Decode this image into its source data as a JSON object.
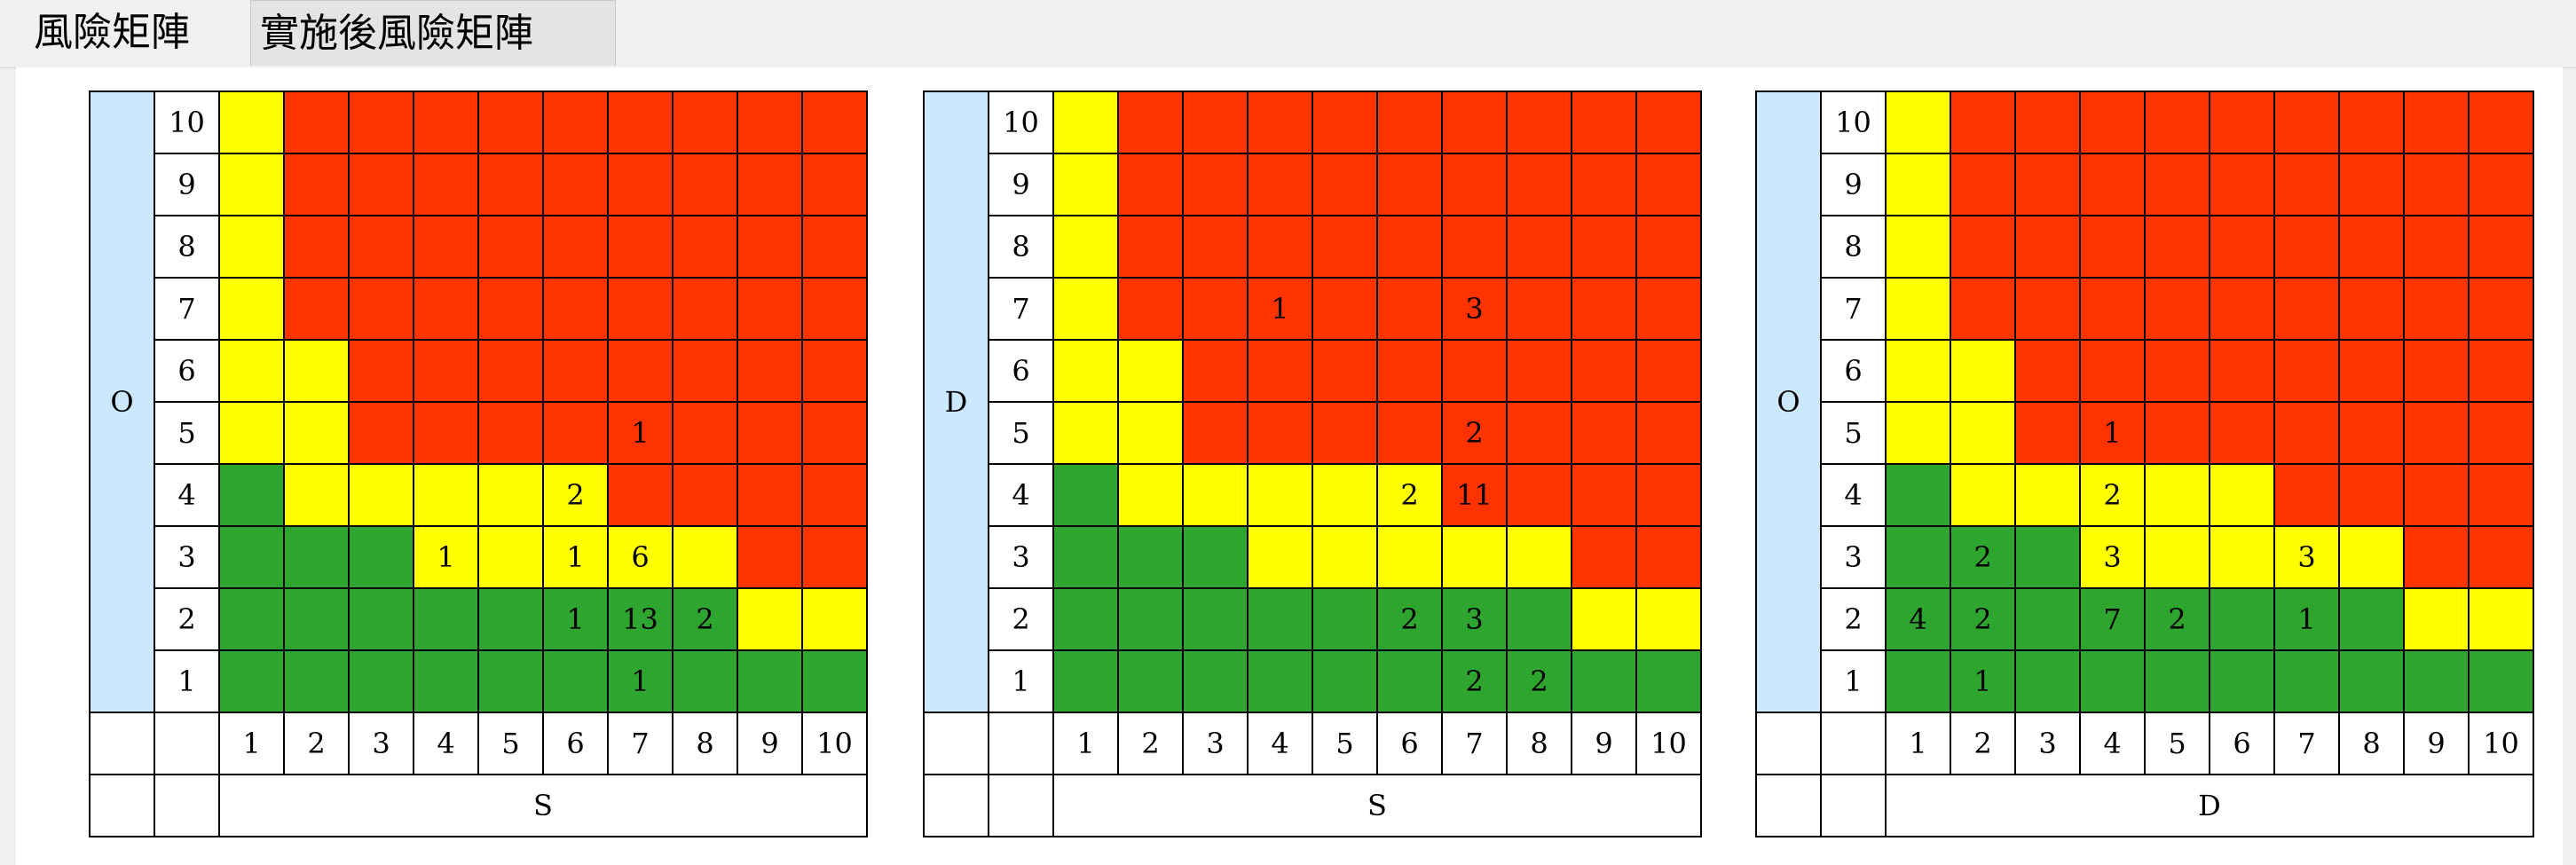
{
  "tabs": [
    {
      "label": "風險矩陣",
      "active": true
    },
    {
      "label": "實施後風險矩陣",
      "active": false
    }
  ],
  "colors": {
    "green": "#2ea52e",
    "yellow": "#ffff00",
    "red": "#ff3300",
    "axis_bg": "#cce8ff"
  },
  "matrices": [
    {
      "y_axis_label": "O",
      "x_axis_label": "S",
      "y_ticks": [
        "10",
        "9",
        "8",
        "7",
        "6",
        "5",
        "4",
        "3",
        "2",
        "1"
      ],
      "x_ticks": [
        "1",
        "2",
        "3",
        "4",
        "5",
        "6",
        "7",
        "8",
        "9",
        "10"
      ],
      "color_rows": [
        "YRRRRRRRRR",
        "YRRRRRRRRR",
        "YRRRRRRRRR",
        "YRRRRRRRRR",
        "YYRRRRRRRR",
        "YYRRRRRRRR",
        "GYYYYYRRRR",
        "GGGYYYYYRR",
        "GGGGGGGGYY",
        "GGGGGGGGGG"
      ],
      "counts": [
        [
          "",
          "",
          "",
          "",
          "",
          "",
          "",
          "",
          "",
          ""
        ],
        [
          "",
          "",
          "",
          "",
          "",
          "",
          "",
          "",
          "",
          ""
        ],
        [
          "",
          "",
          "",
          "",
          "",
          "",
          "",
          "",
          "",
          ""
        ],
        [
          "",
          "",
          "",
          "",
          "",
          "",
          "",
          "",
          "",
          ""
        ],
        [
          "",
          "",
          "",
          "",
          "",
          "",
          "",
          "",
          "",
          ""
        ],
        [
          "",
          "",
          "",
          "",
          "",
          "",
          "1",
          "",
          "",
          ""
        ],
        [
          "",
          "",
          "",
          "",
          "",
          "2",
          "",
          "",
          "",
          ""
        ],
        [
          "",
          "",
          "",
          "1",
          "",
          "1",
          "6",
          "",
          "",
          ""
        ],
        [
          "",
          "",
          "",
          "",
          "",
          "1",
          "13",
          "2",
          "",
          ""
        ],
        [
          "",
          "",
          "",
          "",
          "",
          "",
          "1",
          "",
          "",
          ""
        ]
      ]
    },
    {
      "y_axis_label": "D",
      "x_axis_label": "S",
      "y_ticks": [
        "10",
        "9",
        "8",
        "7",
        "6",
        "5",
        "4",
        "3",
        "2",
        "1"
      ],
      "x_ticks": [
        "1",
        "2",
        "3",
        "4",
        "5",
        "6",
        "7",
        "8",
        "9",
        "10"
      ],
      "color_rows": [
        "YRRRRRRRRR",
        "YRRRRRRRRR",
        "YRRRRRRRRR",
        "YRRRRRRRRR",
        "YYRRRRRRRR",
        "YYRRRRRRRR",
        "GYYYYYRRRR",
        "GGGYYYYYRR",
        "GGGGGGGGYY",
        "GGGGGGGGGG"
      ],
      "counts": [
        [
          "",
          "",
          "",
          "",
          "",
          "",
          "",
          "",
          "",
          ""
        ],
        [
          "",
          "",
          "",
          "",
          "",
          "",
          "",
          "",
          "",
          ""
        ],
        [
          "",
          "",
          "",
          "",
          "",
          "",
          "",
          "",
          "",
          ""
        ],
        [
          "",
          "",
          "",
          "1",
          "",
          "",
          "3",
          "",
          "",
          ""
        ],
        [
          "",
          "",
          "",
          "",
          "",
          "",
          "",
          "",
          "",
          ""
        ],
        [
          "",
          "",
          "",
          "",
          "",
          "",
          "2",
          "",
          "",
          ""
        ],
        [
          "",
          "",
          "",
          "",
          "",
          "2",
          "11",
          "",
          "",
          ""
        ],
        [
          "",
          "",
          "",
          "",
          "",
          "",
          "",
          "",
          "",
          ""
        ],
        [
          "",
          "",
          "",
          "",
          "",
          "2",
          "3",
          "",
          "",
          ""
        ],
        [
          "",
          "",
          "",
          "",
          "",
          "",
          "2",
          "2",
          "",
          ""
        ]
      ]
    },
    {
      "y_axis_label": "O",
      "x_axis_label": "D",
      "y_ticks": [
        "10",
        "9",
        "8",
        "7",
        "6",
        "5",
        "4",
        "3",
        "2",
        "1"
      ],
      "x_ticks": [
        "1",
        "2",
        "3",
        "4",
        "5",
        "6",
        "7",
        "8",
        "9",
        "10"
      ],
      "color_rows": [
        "YRRRRRRRRR",
        "YRRRRRRRRR",
        "YRRRRRRRRR",
        "YRRRRRRRRR",
        "YYRRRRRRRR",
        "YYRRRRRRRR",
        "GYYYYYRRRR",
        "GGGYYYYYRR",
        "GGGGGGGGYY",
        "GGGGGGGGGG"
      ],
      "counts": [
        [
          "",
          "",
          "",
          "",
          "",
          "",
          "",
          "",
          "",
          ""
        ],
        [
          "",
          "",
          "",
          "",
          "",
          "",
          "",
          "",
          "",
          ""
        ],
        [
          "",
          "",
          "",
          "",
          "",
          "",
          "",
          "",
          "",
          ""
        ],
        [
          "",
          "",
          "",
          "",
          "",
          "",
          "",
          "",
          "",
          ""
        ],
        [
          "",
          "",
          "",
          "",
          "",
          "",
          "",
          "",
          "",
          ""
        ],
        [
          "",
          "",
          "",
          "1",
          "",
          "",
          "",
          "",
          "",
          ""
        ],
        [
          "",
          "",
          "",
          "2",
          "",
          "",
          "",
          "",
          "",
          ""
        ],
        [
          "",
          "2",
          "",
          "3",
          "",
          "",
          "3",
          "",
          "",
          ""
        ],
        [
          "4",
          "2",
          "",
          "7",
          "2",
          "",
          "1",
          "",
          "",
          ""
        ],
        [
          "",
          "1",
          "",
          "",
          "",
          "",
          "",
          "",
          "",
          ""
        ]
      ]
    }
  ]
}
